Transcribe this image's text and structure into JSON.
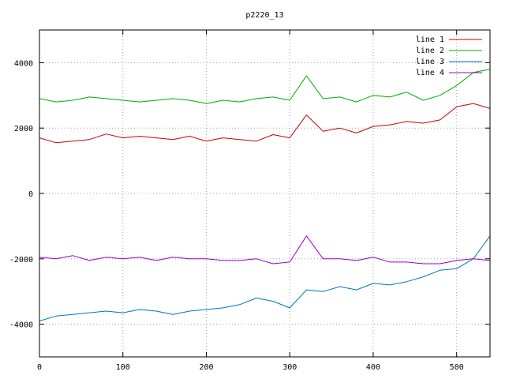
{
  "chart_data": {
    "type": "line",
    "title": "p2220_13",
    "xlabel": "",
    "ylabel": "",
    "xlim": [
      0,
      540
    ],
    "ylim": [
      -5000,
      5000
    ],
    "x_ticks": [
      0,
      100,
      200,
      300,
      400,
      500
    ],
    "y_ticks": [
      -4000,
      -2000,
      0,
      2000,
      4000
    ],
    "x_tick_labels": [
      "0",
      "100",
      "200",
      "300",
      "400",
      "500"
    ],
    "y_tick_labels": [
      "-4000",
      "-2000",
      "0",
      "2000",
      "4000"
    ],
    "grid": true,
    "legend_position": "top-right",
    "x_step": 20,
    "series": [
      {
        "name": "line 1",
        "color": "#cc0000",
        "values": [
          1700,
          1550,
          1600,
          1650,
          1820,
          1700,
          1750,
          1700,
          1650,
          1750,
          1600,
          1700,
          1650,
          1600,
          1800,
          1700,
          2400,
          1900,
          2000,
          1850,
          2050,
          2100,
          2200,
          2150,
          2250,
          2650,
          2750,
          2600
        ]
      },
      {
        "name": "line 2",
        "color": "#00aa00",
        "values": [
          2900,
          2800,
          2850,
          2950,
          2900,
          2850,
          2800,
          2850,
          2900,
          2850,
          2750,
          2850,
          2800,
          2900,
          2950,
          2850,
          3600,
          2900,
          2950,
          2800,
          3000,
          2950,
          3100,
          2850,
          3000,
          3300,
          3700,
          3800
        ]
      },
      {
        "name": "line 3",
        "color": "#0072cc",
        "values": [
          -3900,
          -3750,
          -3700,
          -3650,
          -3600,
          -3650,
          -3550,
          -3600,
          -3700,
          -3600,
          -3550,
          -3500,
          -3400,
          -3200,
          -3300,
          -3500,
          -2950,
          -3000,
          -2850,
          -2950,
          -2750,
          -2800,
          -2700,
          -2550,
          -2350,
          -2300,
          -2000,
          -1300
        ]
      },
      {
        "name": "line 4",
        "color": "#9900cc",
        "values": [
          -1950,
          -2000,
          -1900,
          -2050,
          -1950,
          -2000,
          -1950,
          -2050,
          -1950,
          -2000,
          -2000,
          -2050,
          -2050,
          -2000,
          -2150,
          -2100,
          -1300,
          -2000,
          -2000,
          -2050,
          -1950,
          -2100,
          -2100,
          -2150,
          -2150,
          -2050,
          -2000,
          -2050
        ]
      }
    ]
  }
}
